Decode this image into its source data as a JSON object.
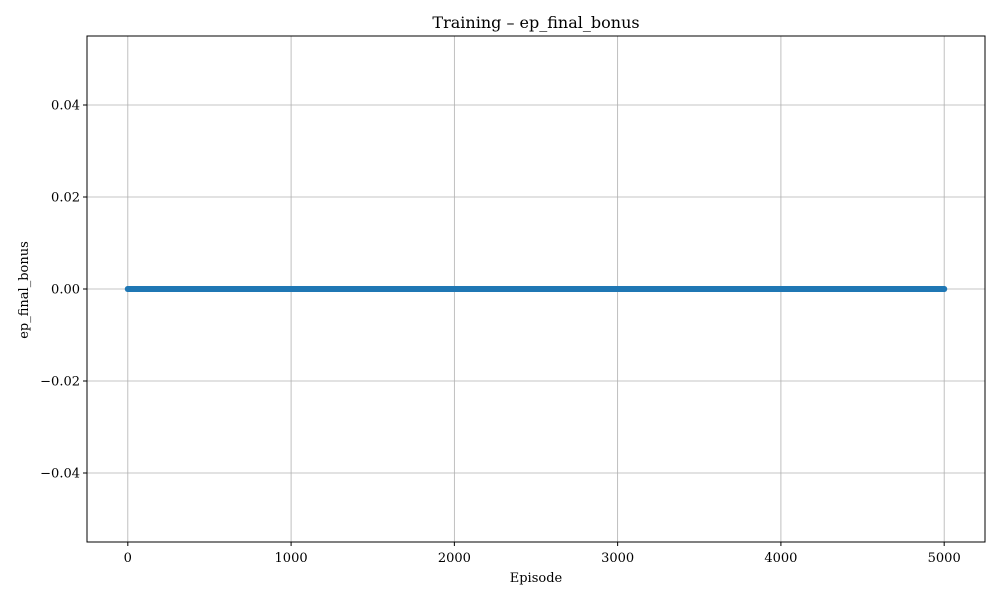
{
  "chart_data": {
    "type": "line",
    "title": "Training – ep_final_bonus",
    "xlabel": "Episode",
    "ylabel": "ep_final_bonus",
    "xlim": [
      -250,
      5250
    ],
    "ylim": [
      -0.055,
      0.055
    ],
    "x_ticks": [
      0,
      1000,
      2000,
      3000,
      4000,
      5000
    ],
    "x_tick_labels": [
      "0",
      "1000",
      "2000",
      "3000",
      "4000",
      "5000"
    ],
    "y_ticks": [
      -0.04,
      -0.02,
      0.0,
      0.02,
      0.04
    ],
    "y_tick_labels": [
      "−0.04",
      "−0.02",
      "0.00",
      "0.02",
      "0.04"
    ],
    "grid": true,
    "legend": false,
    "series": [
      {
        "color": "#1f77b4",
        "marker": "circle",
        "x_range": [
          0,
          5000
        ],
        "x_step": 1,
        "y_constant": 0.0
      }
    ]
  }
}
